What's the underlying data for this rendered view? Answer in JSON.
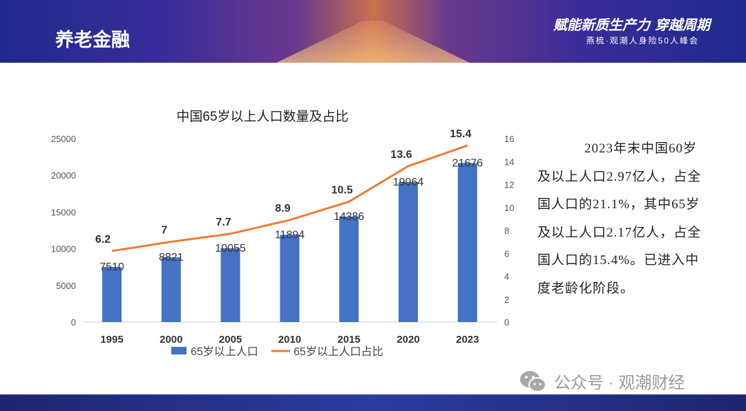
{
  "header": {
    "title": "养老金融",
    "slogan": "赋能新质生产力 穿越周期",
    "subslogan": "燕梳·观潮人身险50人峰会"
  },
  "description": "2023年末中国60岁及以上人口2.97亿人，占全国人口的21.1%，其中65岁及以上人口2.17亿人，占全国人口的15.4%。已进入中度老龄化阶段。",
  "watermark": "公众号 · 观潮财经",
  "colors": {
    "bar": "#4472c4",
    "line": "#ed7d31"
  },
  "chart_data": {
    "type": "bar+line",
    "title": "中国65岁以上人口数量及占比",
    "categories": [
      "1995",
      "2000",
      "2005",
      "2010",
      "2015",
      "2020",
      "2023"
    ],
    "series": [
      {
        "name": "65岁以上人口",
        "type": "bar",
        "axis": "left",
        "values": [
          7510,
          8821,
          10055,
          11894,
          14386,
          19064,
          21676
        ]
      },
      {
        "name": "65岁以上人口占比",
        "type": "line",
        "axis": "right",
        "values": [
          6.2,
          7,
          7.7,
          8.9,
          10.5,
          13.6,
          15.4
        ]
      }
    ],
    "yleft": {
      "range": [
        0,
        25000
      ],
      "ticks": [
        "0",
        "5000",
        "10000",
        "15000",
        "20000",
        "25000"
      ]
    },
    "yright": {
      "range": [
        0,
        16
      ],
      "ticks": [
        "0",
        "2",
        "4",
        "6",
        "8",
        "10",
        "12",
        "14",
        "16"
      ]
    },
    "grid": false,
    "legend": "bottom"
  }
}
